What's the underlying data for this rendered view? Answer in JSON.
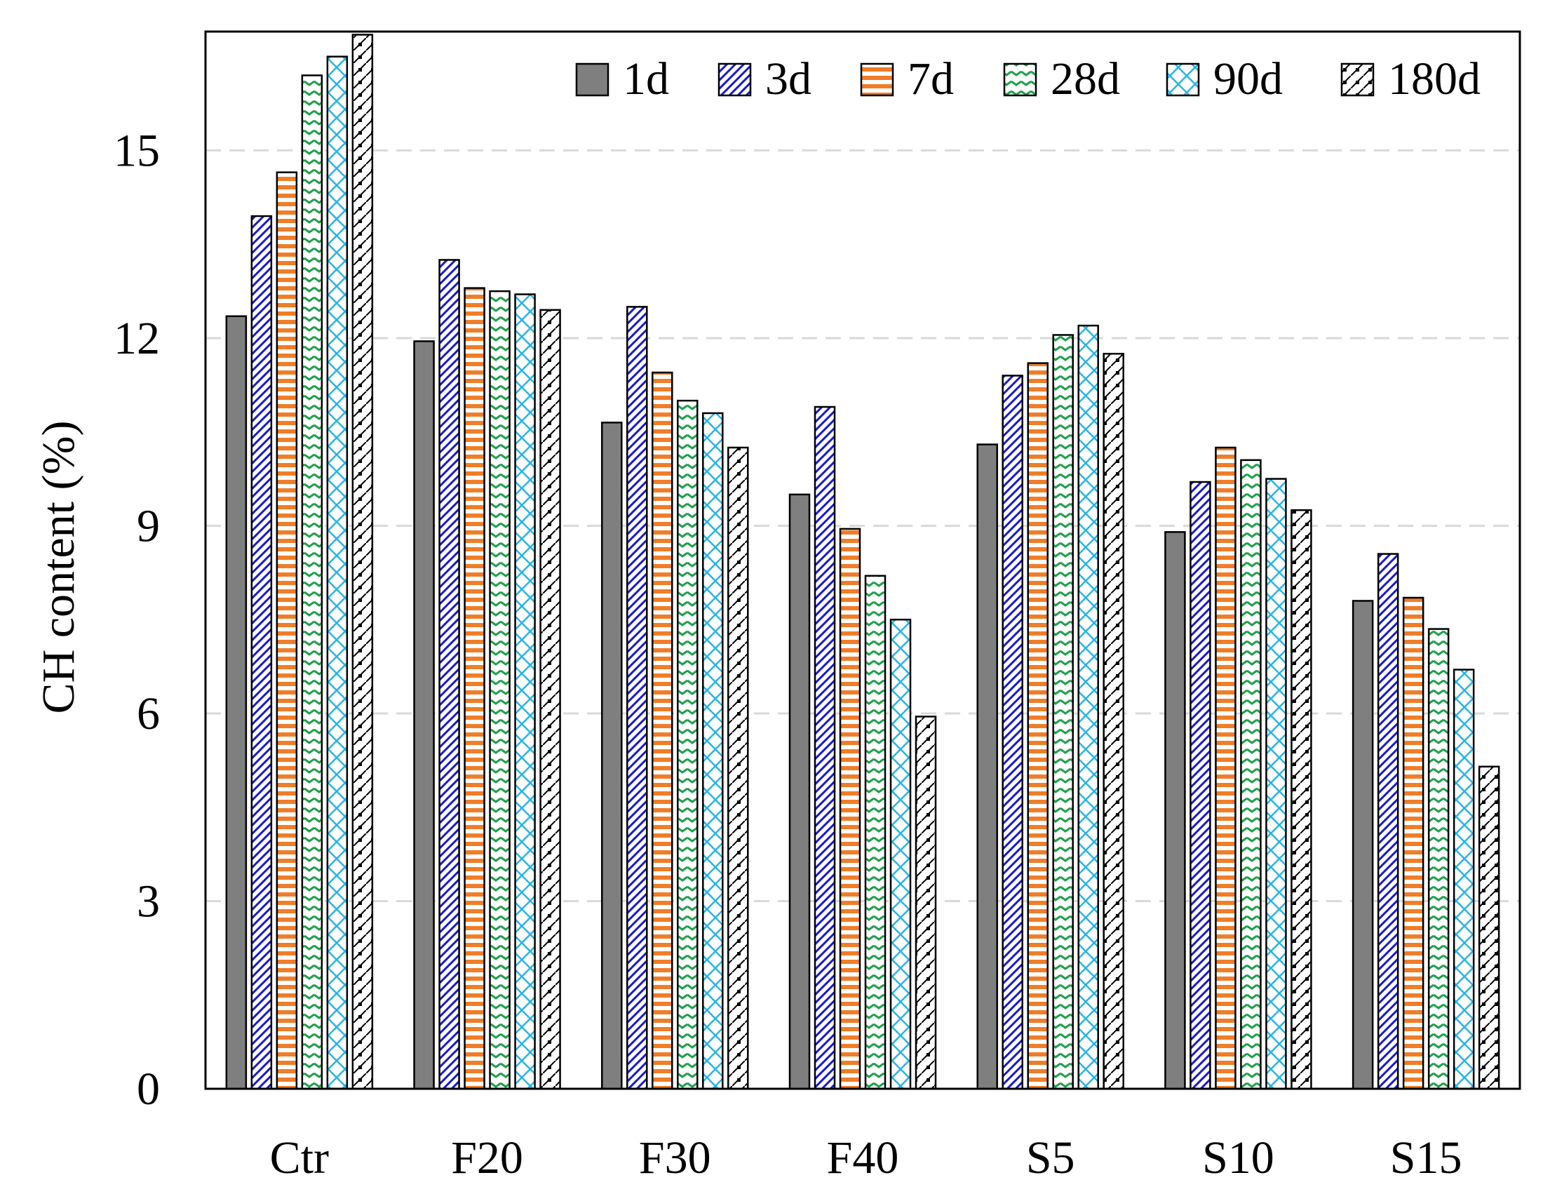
{
  "chart_data": {
    "type": "bar",
    "title": "",
    "xlabel": "",
    "ylabel": "CH content (%)",
    "ylim": [
      0,
      16.9
    ],
    "yticks": [
      0,
      3,
      6,
      9,
      12,
      15
    ],
    "ytick_labels": [
      "0",
      "3",
      "6",
      "9",
      "12",
      "15"
    ],
    "grid": "horizontal dashed",
    "legend_position": "top-right",
    "categories": [
      "Ctr",
      "F20",
      "F30",
      "F40",
      "S5",
      "S10",
      "S15"
    ],
    "series": [
      {
        "name": "1d",
        "values": [
          12.35,
          11.95,
          10.65,
          9.5,
          10.3,
          8.9,
          7.8
        ]
      },
      {
        "name": "3d",
        "values": [
          13.95,
          13.25,
          12.5,
          10.9,
          11.4,
          9.7,
          8.55
        ]
      },
      {
        "name": "7d",
        "values": [
          14.65,
          12.8,
          11.45,
          8.95,
          11.6,
          10.25,
          7.85
        ]
      },
      {
        "name": "28d",
        "values": [
          16.2,
          12.75,
          11.0,
          8.2,
          12.05,
          10.05,
          7.35
        ]
      },
      {
        "name": "90d",
        "values": [
          16.5,
          12.7,
          10.8,
          7.5,
          12.2,
          9.75,
          6.7
        ]
      },
      {
        "name": "180d",
        "values": [
          16.85,
          12.45,
          10.25,
          5.95,
          11.75,
          9.25,
          5.15
        ]
      }
    ],
    "series_colors": {
      "1d": "#7f7f7f",
      "3d": "#1a1acc",
      "7d": "#f07d28",
      "28d": "#1ea04b",
      "90d": "#27b4e6",
      "180d": "#000000"
    }
  }
}
